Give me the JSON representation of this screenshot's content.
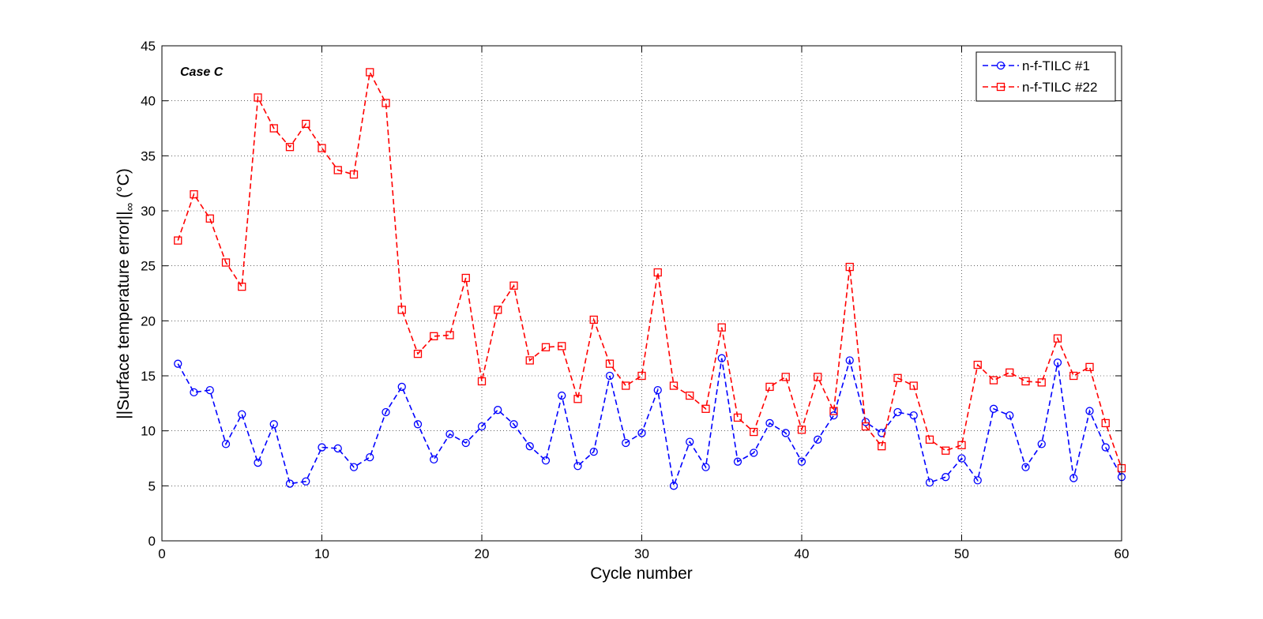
{
  "chart_data": {
    "type": "line",
    "title": "",
    "xlabel": "Cycle number",
    "ylabel": "||Surface temperature error||",
    "ylabel_subscript": "∞",
    "ylabel_unit": "(°C)",
    "annotation": "Case C",
    "xlim": [
      0,
      60
    ],
    "ylim": [
      0,
      45
    ],
    "xticks": [
      0,
      10,
      20,
      30,
      40,
      50,
      60
    ],
    "yticks": [
      0,
      5,
      10,
      15,
      20,
      25,
      30,
      35,
      40,
      45
    ],
    "grid": true,
    "legend_position": "top-right",
    "x": [
      1,
      2,
      3,
      4,
      5,
      6,
      7,
      8,
      9,
      10,
      11,
      12,
      13,
      14,
      15,
      16,
      17,
      18,
      19,
      20,
      21,
      22,
      23,
      24,
      25,
      26,
      27,
      28,
      29,
      30,
      31,
      32,
      33,
      34,
      35,
      36,
      37,
      38,
      39,
      40,
      41,
      42,
      43,
      44,
      45,
      46,
      47,
      48,
      49,
      50,
      51,
      52,
      53,
      54,
      55,
      56,
      57,
      58,
      59,
      60
    ],
    "series": [
      {
        "name": "n-f-TILC #1",
        "color": "#0000ff",
        "marker": "circle",
        "values": [
          16.1,
          13.5,
          13.7,
          8.8,
          11.5,
          7.1,
          10.6,
          5.2,
          5.4,
          8.5,
          8.4,
          6.7,
          7.6,
          11.7,
          14.0,
          10.6,
          7.4,
          9.7,
          8.9,
          10.4,
          11.9,
          10.6,
          8.6,
          7.3,
          13.2,
          6.8,
          8.1,
          15.0,
          8.9,
          9.8,
          13.7,
          5.0,
          9.0,
          6.7,
          16.6,
          7.2,
          8.0,
          10.7,
          9.8,
          7.2,
          9.2,
          11.4,
          16.4,
          10.8,
          9.8,
          11.7,
          11.4,
          5.3,
          5.8,
          7.5,
          5.5,
          12.0,
          11.4,
          6.7,
          8.8,
          16.2,
          5.7,
          11.8,
          8.5,
          5.8
        ]
      },
      {
        "name": "n-f-TILC #22",
        "color": "#ff0000",
        "marker": "square",
        "values": [
          27.3,
          31.5,
          29.3,
          25.3,
          23.1,
          40.3,
          37.5,
          35.8,
          37.9,
          35.7,
          33.7,
          33.3,
          42.6,
          39.8,
          21.0,
          17.0,
          18.6,
          18.7,
          23.9,
          14.5,
          21.0,
          23.2,
          16.4,
          17.6,
          17.7,
          12.9,
          20.1,
          16.1,
          14.1,
          15.0,
          24.4,
          14.1,
          13.2,
          12.0,
          19.4,
          11.2,
          9.9,
          14.0,
          14.9,
          10.1,
          14.9,
          11.8,
          24.9,
          10.4,
          8.6,
          14.8,
          14.1,
          9.2,
          8.2,
          8.7,
          16.0,
          14.6,
          15.3,
          14.5,
          14.4,
          18.4,
          15.0,
          15.8,
          10.7,
          6.6
        ]
      }
    ]
  }
}
